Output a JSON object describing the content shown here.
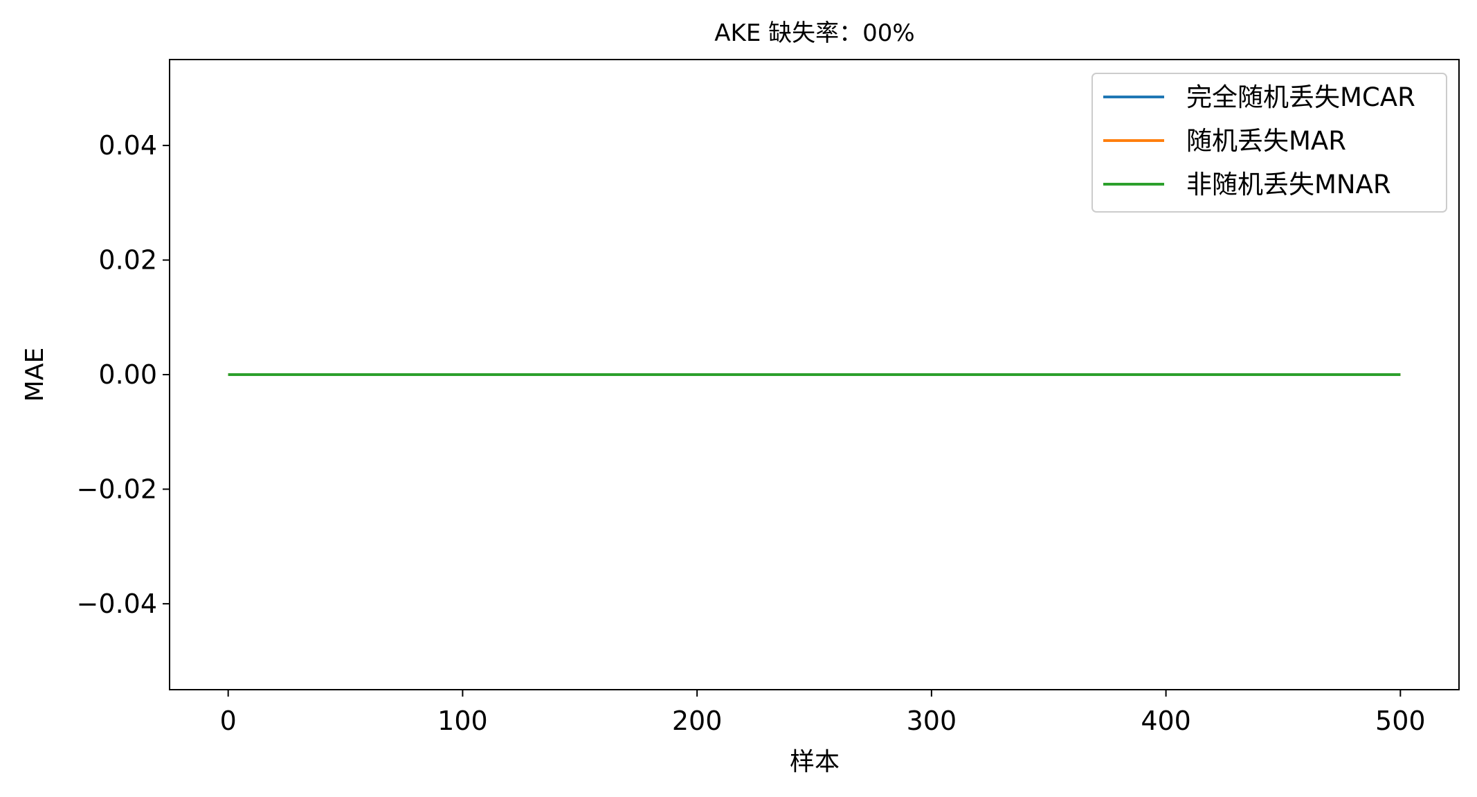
{
  "chart_data": {
    "type": "line",
    "title": "AKE 缺失率：00%",
    "xlabel": "样本",
    "ylabel": "MAE",
    "xlim": [
      -25,
      525
    ],
    "ylim": [
      -0.055,
      0.055
    ],
    "xticks": [
      0,
      100,
      200,
      300,
      400,
      500
    ],
    "xtick_labels": [
      "0",
      "100",
      "200",
      "300",
      "400",
      "500"
    ],
    "yticks": [
      -0.04,
      -0.02,
      0.0,
      0.02,
      0.04
    ],
    "ytick_labels": [
      "−0.04",
      "−0.02",
      "0.00",
      "0.02",
      "0.04"
    ],
    "grid": false,
    "legend_position": "top-right",
    "x": [
      0,
      500
    ],
    "series": [
      {
        "name": "完全随机丢失MCAR",
        "color": "#1f77b4",
        "values": [
          0,
          0
        ]
      },
      {
        "name": "随机丢失MAR",
        "color": "#ff7f0e",
        "values": [
          0,
          0
        ]
      },
      {
        "name": "非随机丢失MNAR",
        "color": "#2ca02c",
        "values": [
          0,
          0
        ]
      }
    ]
  }
}
